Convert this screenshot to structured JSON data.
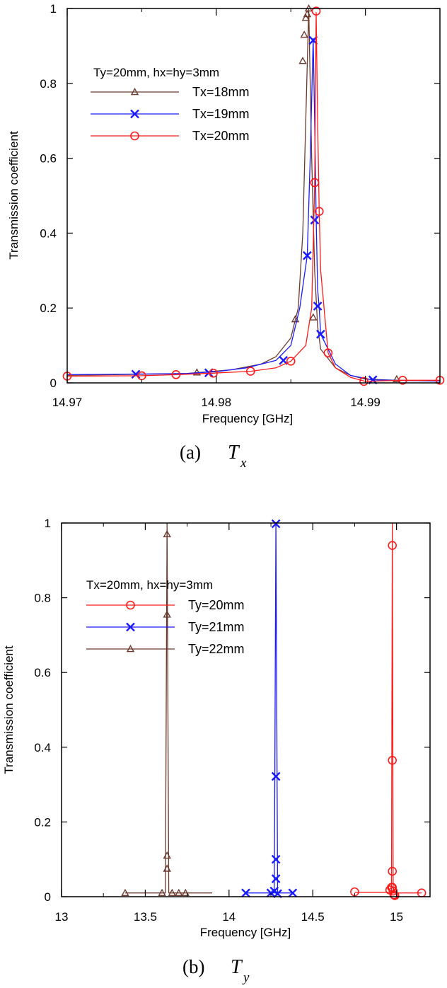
{
  "chart_data": [
    {
      "type": "line",
      "caption": "(a)",
      "caption_symbol": "T",
      "caption_sub": "x",
      "xlabel": "Frequency [GHz]",
      "ylabel": "Transmission coefficient",
      "xlim": [
        14.97,
        14.995
      ],
      "ylim": [
        0,
        1
      ],
      "xticks": [
        14.97,
        14.98,
        14.99
      ],
      "xtick_labels": [
        "14.97",
        "14.98",
        "14.99"
      ],
      "xminor": [
        14.975,
        14.985
      ],
      "yticks": [
        0,
        0.2,
        0.4,
        0.6,
        0.8,
        1
      ],
      "ytick_labels": [
        "0",
        "0.2",
        "0.4",
        "0.6",
        "0.8",
        "1"
      ],
      "legend_title": "Ty=20mm, hx=hy=3mm",
      "legend_placement": "upper-left",
      "grid": false,
      "series": [
        {
          "name": "Tx=18mm",
          "color": "#6b3a2e",
          "marker": "triangle",
          "line": [
            [
              14.97,
              0.02
            ],
            [
              14.978,
              0.025
            ],
            [
              14.981,
              0.035
            ],
            [
              14.983,
              0.05
            ],
            [
              14.984,
              0.07
            ],
            [
              14.985,
              0.12
            ],
            [
              14.9855,
              0.2
            ],
            [
              14.9858,
              0.4
            ],
            [
              14.986,
              0.7
            ],
            [
              14.9862,
              1.0
            ],
            [
              14.9864,
              0.6
            ],
            [
              14.9866,
              0.3
            ],
            [
              14.9868,
              0.15
            ],
            [
              14.987,
              0.09
            ],
            [
              14.988,
              0.04
            ],
            [
              14.989,
              0.02
            ],
            [
              14.99,
              0.01
            ],
            [
              14.992,
              0.007
            ],
            [
              14.995,
              0.005
            ]
          ],
          "points": [
            [
              14.9787,
              0.028
            ],
            [
              14.9853,
              0.17
            ],
            [
              14.9858,
              0.86
            ],
            [
              14.9859,
              0.93
            ],
            [
              14.986,
              0.975
            ],
            [
              14.9861,
              0.985
            ],
            [
              14.9862,
              1.0
            ],
            [
              14.9865,
              0.175
            ],
            [
              14.9921,
              0.01
            ]
          ]
        },
        {
          "name": "Tx=19mm",
          "color": "#1a1aff",
          "marker": "x",
          "line": [
            [
              14.97,
              0.022
            ],
            [
              14.978,
              0.025
            ],
            [
              14.98,
              0.03
            ],
            [
              14.982,
              0.04
            ],
            [
              14.984,
              0.06
            ],
            [
              14.985,
              0.1
            ],
            [
              14.9856,
              0.2
            ],
            [
              14.9861,
              0.34
            ],
            [
              14.9863,
              0.6
            ],
            [
              14.9865,
              0.92
            ],
            [
              14.9866,
              0.7
            ],
            [
              14.9867,
              0.44
            ],
            [
              14.9868,
              0.25
            ],
            [
              14.9869,
              0.2
            ],
            [
              14.987,
              0.13
            ],
            [
              14.988,
              0.05
            ],
            [
              14.989,
              0.02
            ],
            [
              14.9905,
              0.008
            ],
            [
              14.995,
              0.005
            ]
          ],
          "points": [
            [
              14.9746,
              0.023
            ],
            [
              14.9795,
              0.027
            ],
            [
              14.9845,
              0.06
            ],
            [
              14.9861,
              0.34
            ],
            [
              14.9865,
              0.915
            ],
            [
              14.9866,
              0.435
            ],
            [
              14.9868,
              0.205
            ],
            [
              14.987,
              0.13
            ],
            [
              14.9905,
              0.008
            ]
          ]
        },
        {
          "name": "Tx=20mm",
          "color": "#ff1a1a",
          "marker": "circle",
          "line": [
            [
              14.97,
              0.018
            ],
            [
              14.975,
              0.019
            ],
            [
              14.9773,
              0.022
            ],
            [
              14.9798,
              0.026
            ],
            [
              14.9823,
              0.031
            ],
            [
              14.984,
              0.04
            ],
            [
              14.985,
              0.058
            ],
            [
              14.986,
              0.1
            ],
            [
              14.9864,
              0.2
            ],
            [
              14.9866,
              0.53
            ],
            [
              14.9867,
              0.99
            ],
            [
              14.9868,
              0.7
            ],
            [
              14.9869,
              0.46
            ],
            [
              14.987,
              0.3
            ],
            [
              14.9875,
              0.08
            ],
            [
              14.988,
              0.04
            ],
            [
              14.989,
              0.015
            ],
            [
              14.99,
              0.004
            ],
            [
              14.9925,
              0.007
            ],
            [
              14.995,
              0.007
            ]
          ],
          "points": [
            [
              14.97,
              0.018
            ],
            [
              14.975,
              0.019
            ],
            [
              14.9773,
              0.022
            ],
            [
              14.9798,
              0.026
            ],
            [
              14.9823,
              0.031
            ],
            [
              14.985,
              0.058
            ],
            [
              14.9866,
              0.535
            ],
            [
              14.9867,
              0.993
            ],
            [
              14.9869,
              0.458
            ],
            [
              14.9875,
              0.08
            ],
            [
              14.9899,
              0.004
            ],
            [
              14.9925,
              0.007
            ],
            [
              14.995,
              0.007
            ]
          ]
        }
      ]
    },
    {
      "type": "line",
      "caption": "(b)",
      "caption_symbol": "T",
      "caption_sub": "y",
      "xlabel": "Frequency [GHz]",
      "ylabel": "Transmission coefficient",
      "xlim": [
        13,
        15.2
      ],
      "ylim": [
        0,
        1
      ],
      "xticks": [
        13,
        13.5,
        14,
        14.5,
        15
      ],
      "xtick_labels": [
        "13",
        "13.5",
        "14",
        "14.5",
        "15"
      ],
      "xminor": [
        13.25,
        13.75,
        14.25,
        14.75
      ],
      "yticks": [
        0,
        0.2,
        0.4,
        0.6,
        0.8,
        1
      ],
      "ytick_labels": [
        "0",
        "0.2",
        "0.4",
        "0.6",
        "0.8",
        "1"
      ],
      "legend_title": "Tx=20mm, hx=hy=3mm",
      "legend_placement": "upper-left",
      "grid": false,
      "series": [
        {
          "name": "Ty=20mm",
          "color": "#ff1a1a",
          "marker": "circle",
          "line": [
            [
              14.75,
              0.012
            ],
            [
              14.97,
              0.012
            ],
            [
              14.975,
              1.0
            ],
            [
              14.98,
              0.01
            ],
            [
              15.15,
              0.01
            ]
          ],
          "points": [
            [
              14.75,
              0.013
            ],
            [
              14.96,
              0.018
            ],
            [
              14.97,
              0.025
            ],
            [
              14.975,
              0.94
            ],
            [
              14.975,
              0.365
            ],
            [
              14.975,
              0.068
            ],
            [
              14.975,
              0.025
            ],
            [
              14.98,
              0.015
            ],
            [
              14.985,
              0.005
            ],
            [
              14.99,
              0.003
            ],
            [
              15.15,
              0.01
            ]
          ]
        },
        {
          "name": "Ty=21mm",
          "color": "#1a1aff",
          "marker": "x",
          "line": [
            [
              14.1,
              0.01
            ],
            [
              14.27,
              0.01
            ],
            [
              14.28,
              1.0
            ],
            [
              14.29,
              0.01
            ],
            [
              14.38,
              0.01
            ]
          ],
          "points": [
            [
              14.1,
              0.01
            ],
            [
              14.25,
              0.01
            ],
            [
              14.27,
              0.015
            ],
            [
              14.28,
              0.998
            ],
            [
              14.28,
              0.322
            ],
            [
              14.28,
              0.1
            ],
            [
              14.28,
              0.048
            ],
            [
              14.29,
              0.008
            ],
            [
              14.38,
              0.01
            ]
          ]
        },
        {
          "name": "Ty=22mm",
          "color": "#6b3a2e",
          "marker": "triangle",
          "line": [
            [
              13.38,
              0.01
            ],
            [
              13.62,
              0.01
            ],
            [
              13.63,
              1.0
            ],
            [
              13.64,
              0.01
            ],
            [
              13.9,
              0.01
            ]
          ],
          "points": [
            [
              13.38,
              0.01
            ],
            [
              13.6,
              0.01
            ],
            [
              13.63,
              0.97
            ],
            [
              13.63,
              0.755
            ],
            [
              13.63,
              0.11
            ],
            [
              13.63,
              0.075
            ],
            [
              13.66,
              0.01
            ],
            [
              13.7,
              0.01
            ],
            [
              13.74,
              0.01
            ]
          ]
        }
      ]
    }
  ]
}
